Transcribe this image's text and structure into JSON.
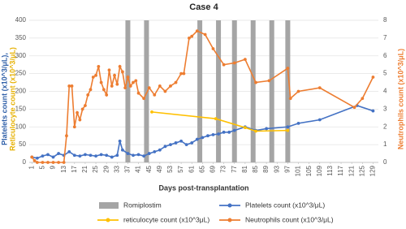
{
  "chart_data": {
    "type": "line",
    "title": "Case 4",
    "xlabel": "Days post-transplantation",
    "ylabel": [
      {
        "text": "Platelets count (x10^3/μL),",
        "color": "#2e5fa8"
      },
      {
        "text": "Reticulocyte count (x10^3/μL)",
        "color": "#e6b000"
      }
    ],
    "y2label": "Neutrophils count (x10^3/μL)",
    "xlim": [
      0,
      131
    ],
    "xticks": [
      1,
      5,
      9,
      13,
      17,
      21,
      25,
      29,
      33,
      37,
      41,
      45,
      49,
      53,
      57,
      61,
      65,
      69,
      73,
      77,
      81,
      85,
      89,
      93,
      97,
      101,
      105,
      109,
      113,
      117,
      121,
      125,
      129
    ],
    "ylim": [
      0,
      400
    ],
    "yticks": [
      0,
      50,
      100,
      150,
      200,
      250,
      300,
      350,
      400
    ],
    "y2lim": [
      0,
      8
    ],
    "y2ticks": [
      0,
      1,
      2,
      3,
      4,
      5,
      6,
      7,
      8
    ],
    "grid": true,
    "series": [
      {
        "name": "Romiplostim",
        "type": "bar",
        "color": "#a5a5a5",
        "x": [
          37,
          44,
          64,
          71,
          77,
          84,
          91,
          97
        ],
        "values": [
          400,
          400,
          400,
          400,
          400,
          400,
          400,
          400
        ]
      },
      {
        "name": "Platelets count (x10^3/μL)",
        "type": "line",
        "color": "#4472c4",
        "x": [
          1,
          3,
          5,
          7,
          9,
          11,
          13,
          15,
          17,
          19,
          21,
          23,
          25,
          27,
          29,
          31,
          33,
          34,
          35,
          37,
          39,
          41,
          43,
          45,
          47,
          49,
          51,
          53,
          55,
          57,
          59,
          61,
          63,
          65,
          67,
          69,
          71,
          73,
          75,
          77,
          81,
          85,
          89,
          97,
          101,
          109,
          123,
          129
        ],
        "values": [
          15,
          12,
          18,
          22,
          15,
          25,
          20,
          30,
          20,
          18,
          22,
          20,
          18,
          22,
          20,
          15,
          20,
          60,
          35,
          25,
          20,
          22,
          18,
          25,
          30,
          35,
          45,
          50,
          55,
          60,
          50,
          55,
          65,
          70,
          75,
          78,
          80,
          85,
          85,
          90,
          100,
          90,
          95,
          100,
          110,
          120,
          160,
          145
        ]
      },
      {
        "name": "reticulocyte count (x10^3μL)",
        "type": "line",
        "color": "#ffc000",
        "x": [
          46,
          70,
          81,
          85,
          97
        ],
        "values": [
          142,
          123,
          98,
          88,
          90
        ]
      },
      {
        "name": "Neutrophils count (x10^3/μL)",
        "type": "line",
        "color": "#ed7d31",
        "axis": "y2",
        "x": [
          1,
          2,
          3,
          5,
          7,
          9,
          11,
          13,
          14,
          15,
          16,
          17,
          18,
          19,
          20,
          21,
          22,
          23,
          24,
          25,
          26,
          27,
          28,
          29,
          30,
          31,
          32,
          33,
          34,
          35,
          36,
          37,
          38,
          39,
          40,
          41,
          43,
          45,
          47,
          49,
          51,
          53,
          55,
          57,
          58,
          60,
          61,
          63,
          66,
          69,
          73,
          77,
          81,
          85,
          90,
          97,
          98,
          101,
          109,
          122,
          125,
          129
        ],
        "values": [
          0.3,
          0.1,
          0,
          0,
          0,
          0,
          0,
          0,
          1.5,
          4.3,
          4.3,
          2,
          2.8,
          2.4,
          3,
          3.2,
          3.8,
          4.1,
          4.8,
          4.9,
          5.4,
          4.5,
          4.1,
          3.8,
          5.2,
          4.3,
          4.9,
          4.4,
          5.4,
          5.1,
          4.2,
          4.8,
          4.3,
          4.5,
          4.6,
          3.9,
          3.6,
          4.2,
          3.8,
          4.3,
          4.0,
          4.3,
          4.5,
          5.0,
          5.0,
          7.0,
          7.1,
          7.4,
          7.2,
          6.4,
          5.5,
          5.6,
          5.8,
          4.5,
          4.6,
          5.3,
          3.6,
          4.0,
          4.2,
          3.1,
          3.6,
          4.8
        ]
      }
    ]
  }
}
